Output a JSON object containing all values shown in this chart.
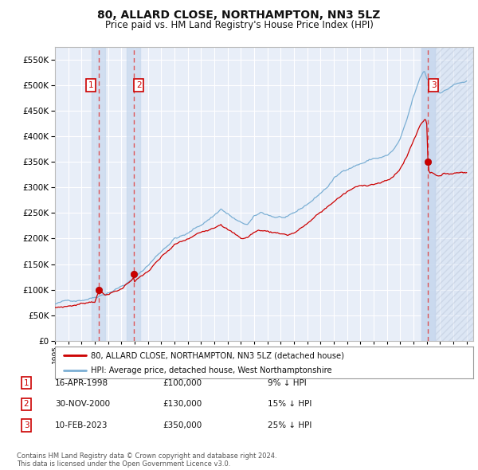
{
  "title": "80, ALLARD CLOSE, NORTHAMPTON, NN3 5LZ",
  "subtitle": "Price paid vs. HM Land Registry's House Price Index (HPI)",
  "ylim": [
    0,
    575000
  ],
  "yticks": [
    0,
    50000,
    100000,
    150000,
    200000,
    250000,
    300000,
    350000,
    400000,
    450000,
    500000,
    550000
  ],
  "ytick_labels": [
    "£0",
    "£50K",
    "£100K",
    "£150K",
    "£200K",
    "£250K",
    "£300K",
    "£350K",
    "£400K",
    "£450K",
    "£500K",
    "£550K"
  ],
  "background_color": "#ffffff",
  "plot_bg_color": "#e8eef8",
  "grid_color": "#ffffff",
  "sale_dates": [
    1998.29,
    2000.92,
    2023.11
  ],
  "sale_prices": [
    100000,
    130000,
    350000
  ],
  "sale_numbers": [
    "1",
    "2",
    "3"
  ],
  "hpi_line_color": "#7bafd4",
  "price_line_color": "#cc0000",
  "sale_marker_color": "#cc0000",
  "vline_color": "#dd4444",
  "shade_color": "#c8d8ee",
  "hatch_color": "#c0cce0",
  "legend_label_price": "80, ALLARD CLOSE, NORTHAMPTON, NN3 5LZ (detached house)",
  "legend_label_hpi": "HPI: Average price, detached house, West Northamptonshire",
  "table_entries": [
    {
      "num": "1",
      "date": "16-APR-1998",
      "price": "£100,000",
      "hpi": "9% ↓ HPI"
    },
    {
      "num": "2",
      "date": "30-NOV-2000",
      "price": "£130,000",
      "hpi": "15% ↓ HPI"
    },
    {
      "num": "3",
      "date": "10-FEB-2023",
      "price": "£350,000",
      "hpi": "25% ↓ HPI"
    }
  ],
  "footer": "Contains HM Land Registry data © Crown copyright and database right 2024.\nThis data is licensed under the Open Government Licence v3.0.",
  "xstart": 1995.0,
  "xend": 2026.5
}
